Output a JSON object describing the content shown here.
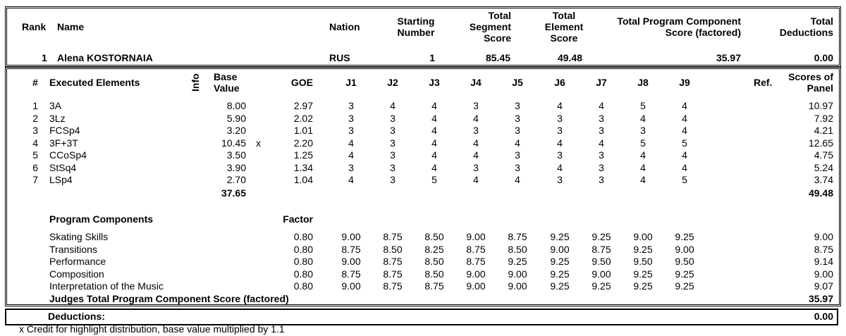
{
  "header": {
    "col_rank": "Rank",
    "col_name": "Name",
    "col_nation": "Nation",
    "col_starting_number": [
      "Starting",
      "Number"
    ],
    "col_total_segment": [
      "Total",
      "Segment",
      "Score"
    ],
    "col_total_element": [
      "Total",
      "Element",
      "Score"
    ],
    "col_total_program": [
      "Total Program Component",
      "Score (factored)"
    ],
    "col_total_deductions": [
      "Total",
      "Deductions"
    ]
  },
  "skater": {
    "rank": "1",
    "name": "Alena KOSTORNAIA",
    "nation": "RUS",
    "starting_number": "1",
    "total_segment_score": "85.45",
    "total_element_score": "49.48",
    "total_program_component_score": "35.97",
    "total_deductions": "0.00"
  },
  "elements_header": {
    "num": "#",
    "executed": "Executed Elements",
    "info": "Info",
    "base_value": [
      "Base",
      "Value"
    ],
    "goe": "GOE",
    "judges": [
      "J1",
      "J2",
      "J3",
      "J4",
      "J5",
      "J6",
      "J7",
      "J8",
      "J9"
    ],
    "ref": "Ref.",
    "scores_of_panel": [
      "Scores of",
      "Panel"
    ]
  },
  "elements": [
    {
      "num": "1",
      "name": "3A",
      "base": "8.00",
      "mark": "",
      "goe": "2.97",
      "judges": [
        "3",
        "4",
        "4",
        "3",
        "3",
        "4",
        "4",
        "5",
        "4"
      ],
      "score": "10.97"
    },
    {
      "num": "2",
      "name": "3Lz",
      "base": "5.90",
      "mark": "",
      "goe": "2.02",
      "judges": [
        "3",
        "3",
        "4",
        "4",
        "3",
        "3",
        "3",
        "4",
        "4"
      ],
      "score": "7.92"
    },
    {
      "num": "3",
      "name": "FCSp4",
      "base": "3.20",
      "mark": "",
      "goe": "1.01",
      "judges": [
        "3",
        "3",
        "4",
        "3",
        "3",
        "3",
        "3",
        "3",
        "4"
      ],
      "score": "4.21"
    },
    {
      "num": "4",
      "name": "3F+3T",
      "base": "10.45",
      "mark": "x",
      "goe": "2.20",
      "judges": [
        "4",
        "3",
        "4",
        "4",
        "4",
        "4",
        "4",
        "5",
        "5"
      ],
      "score": "12.65"
    },
    {
      "num": "5",
      "name": "CCoSp4",
      "base": "3.50",
      "mark": "",
      "goe": "1.25",
      "judges": [
        "4",
        "3",
        "4",
        "4",
        "3",
        "3",
        "3",
        "4",
        "4"
      ],
      "score": "4.75"
    },
    {
      "num": "6",
      "name": "StSq4",
      "base": "3.90",
      "mark": "",
      "goe": "1.34",
      "judges": [
        "3",
        "3",
        "4",
        "3",
        "3",
        "4",
        "3",
        "4",
        "4"
      ],
      "score": "5.24"
    },
    {
      "num": "7",
      "name": "LSp4",
      "base": "2.70",
      "mark": "",
      "goe": "1.04",
      "judges": [
        "4",
        "3",
        "5",
        "4",
        "4",
        "3",
        "3",
        "4",
        "5"
      ],
      "score": "3.74"
    }
  ],
  "elements_total_base": "37.65",
  "elements_total_score": "49.48",
  "components_header": {
    "title": "Program Components",
    "factor": "Factor"
  },
  "components": [
    {
      "name": "Skating Skills",
      "factor": "0.80",
      "judges": [
        "9.00",
        "8.75",
        "8.50",
        "9.00",
        "8.75",
        "9.25",
        "9.25",
        "9.00",
        "9.25"
      ],
      "score": "9.00"
    },
    {
      "name": "Transitions",
      "factor": "0.80",
      "judges": [
        "8.75",
        "8.50",
        "8.25",
        "8.75",
        "8.50",
        "9.00",
        "8.75",
        "9.25",
        "9.00"
      ],
      "score": "8.75"
    },
    {
      "name": "Performance",
      "factor": "0.80",
      "judges": [
        "9.00",
        "8.75",
        "8.50",
        "8.75",
        "9.25",
        "9.25",
        "9.50",
        "9.50",
        "9.50"
      ],
      "score": "9.14"
    },
    {
      "name": "Composition",
      "factor": "0.80",
      "judges": [
        "8.75",
        "8.75",
        "8.50",
        "9.00",
        "9.00",
        "9.25",
        "9.00",
        "9.25",
        "9.25"
      ],
      "score": "9.00"
    },
    {
      "name": "Interpretation of the Music",
      "factor": "0.80",
      "judges": [
        "9.00",
        "8.75",
        "8.75",
        "9.00",
        "9.00",
        "9.25",
        "9.25",
        "9.25",
        "9.25"
      ],
      "score": "9.07"
    }
  ],
  "components_total_label": "Judges Total Program Component Score (factored)",
  "components_total": "35.97",
  "deductions_label": "Deductions:",
  "deductions_value": "0.00",
  "footnote": "x Credit for highlight distribution, base value multiplied by 1.1"
}
